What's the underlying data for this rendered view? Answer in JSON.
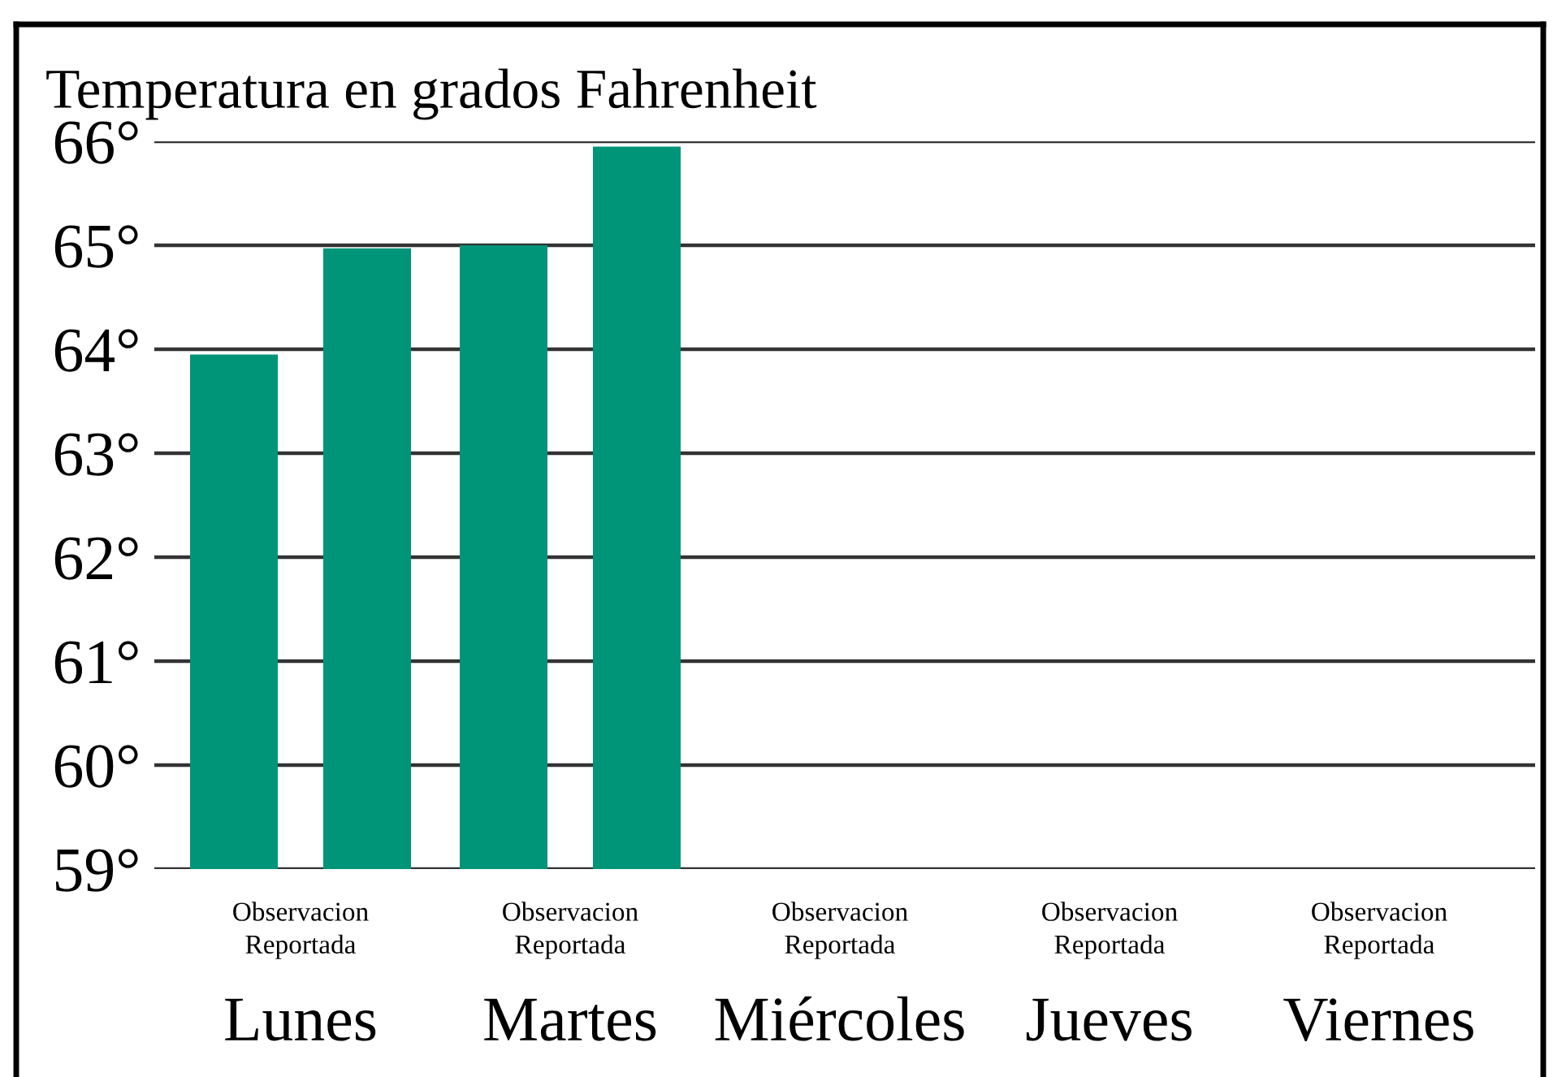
{
  "chart_data": {
    "type": "bar",
    "title": "Temperatura en grados Fahrenheit",
    "categories": [
      "Lunes",
      "Martes",
      "Miércoles",
      "Jueves",
      "Viernes"
    ],
    "series": [
      {
        "name": "Observacion",
        "color": "#009478",
        "values": [
          63.95,
          65,
          null,
          null,
          null
        ]
      },
      {
        "name": "Reportada",
        "color": "#009478",
        "values": [
          64.97,
          65.95,
          null,
          null,
          null
        ]
      }
    ],
    "ylim": [
      59,
      66
    ],
    "yticks": [
      {
        "value": 59,
        "label": "59°"
      },
      {
        "value": 60,
        "label": "60°"
      },
      {
        "value": 61,
        "label": "61°"
      },
      {
        "value": 62,
        "label": "62°"
      },
      {
        "value": 63,
        "label": "63°"
      },
      {
        "value": 64,
        "label": "64°"
      },
      {
        "value": 65,
        "label": "65°"
      },
      {
        "value": 66,
        "label": "66°"
      }
    ],
    "grid": "y",
    "legend": false
  }
}
